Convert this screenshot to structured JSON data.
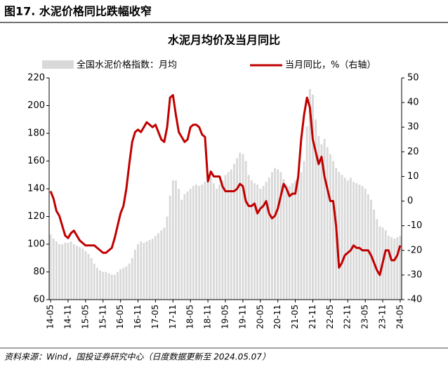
{
  "header": "图17. 水泥价格同比跌幅收窄",
  "source": "资料来源：Wind，国投证券研究中心（日度数据更新至 2024.05.07）",
  "chart_data": {
    "type": "bar-line",
    "title": "水泥月均价及当月同比",
    "categories": [
      "14-05",
      null,
      null,
      null,
      null,
      null,
      "14-11",
      null,
      null,
      null,
      null,
      null,
      "15-05",
      null,
      null,
      null,
      null,
      null,
      "15-11",
      null,
      null,
      null,
      null,
      null,
      "16-05",
      null,
      null,
      null,
      null,
      null,
      "16-11",
      null,
      null,
      null,
      null,
      null,
      "17-05",
      null,
      null,
      null,
      null,
      null,
      "17-11",
      null,
      null,
      null,
      null,
      null,
      "18-05",
      null,
      null,
      null,
      null,
      null,
      "18-11",
      null,
      null,
      null,
      null,
      null,
      "19-05",
      null,
      null,
      null,
      null,
      null,
      "19-11",
      null,
      null,
      null,
      null,
      null,
      "20-05",
      null,
      null,
      null,
      null,
      null,
      "20-11",
      null,
      null,
      null,
      null,
      null,
      "21-05",
      null,
      null,
      null,
      null,
      null,
      "21-11",
      null,
      null,
      null,
      null,
      null,
      "22-05",
      null,
      null,
      null,
      null,
      null,
      "22-11",
      null,
      null,
      null,
      null,
      null,
      "23-05",
      null,
      null,
      null,
      null,
      null,
      "23-11",
      null,
      null,
      null,
      null,
      null,
      "24-05"
    ],
    "series": [
      {
        "name": "全国水泥价格指数：月均",
        "type": "bar",
        "color": "#d9d9d9",
        "axis": "y",
        "values": [
          107,
          104,
          102,
          100,
          100,
          101,
          101,
          102,
          100,
          99,
          98,
          97,
          95,
          93,
          90,
          86,
          83,
          81,
          80,
          80,
          79,
          78,
          78,
          80,
          82,
          83,
          84,
          86,
          90,
          96,
          100,
          102,
          101,
          102,
          103,
          104,
          106,
          108,
          110,
          112,
          120,
          135,
          146,
          146,
          140,
          132,
          136,
          138,
          140,
          142,
          143,
          142,
          143,
          145,
          147,
          148,
          144,
          140,
          143,
          146,
          150,
          152,
          154,
          158,
          162,
          166,
          165,
          160,
          150,
          146,
          144,
          143,
          140,
          142,
          145,
          148,
          152,
          155,
          154,
          152,
          147,
          143,
          142,
          144,
          146,
          148,
          152,
          160,
          185,
          212,
          208,
          190,
          178,
          172,
          176,
          170,
          165,
          160,
          155,
          152,
          150,
          148,
          146,
          148,
          145,
          144,
          143,
          142,
          140,
          136,
          132,
          125,
          118,
          113,
          112,
          110,
          106,
          105,
          104,
          105,
          106
        ]
      },
      {
        "name": "当月同比，%（右轴）",
        "type": "line",
        "color": "#c00000",
        "axis": "y2",
        "values": [
          4,
          1,
          -4,
          -6,
          -10,
          -14,
          -15,
          -13,
          -12,
          -14,
          -16,
          -17,
          -18,
          -18,
          -18,
          -18,
          -19,
          -20,
          -21,
          -21,
          -20,
          -19,
          -15,
          -10,
          -5,
          -2,
          5,
          15,
          24,
          28,
          29,
          28,
          30,
          32,
          31,
          30,
          31,
          28,
          25,
          24,
          30,
          42,
          43,
          35,
          28,
          26,
          24,
          25,
          30,
          31,
          31,
          30,
          27,
          26,
          8,
          12,
          10,
          10,
          10,
          6,
          4,
          4,
          4,
          4,
          5,
          7,
          6,
          0,
          -2,
          -2,
          -1,
          -5,
          -3,
          -2,
          0,
          -5,
          -7,
          -6,
          -3,
          2,
          7,
          5,
          2,
          3,
          3,
          10,
          25,
          35,
          42,
          38,
          25,
          20,
          15,
          18,
          10,
          5,
          0,
          0,
          -10,
          -27,
          -25,
          -22,
          -21,
          -20,
          -18,
          -19,
          -19,
          -20,
          -20,
          -20,
          -22,
          -25,
          -28,
          -30,
          -25,
          -20,
          -20,
          -24,
          -24,
          -22,
          -18
        ]
      }
    ],
    "ylim": [
      60,
      220
    ],
    "yticks": [
      60,
      80,
      100,
      120,
      140,
      160,
      180,
      200,
      220
    ],
    "y2lim": [
      -40,
      50
    ],
    "y2ticks": [
      -40,
      -30,
      -20,
      -10,
      0,
      10,
      20,
      30,
      40,
      50
    ]
  }
}
